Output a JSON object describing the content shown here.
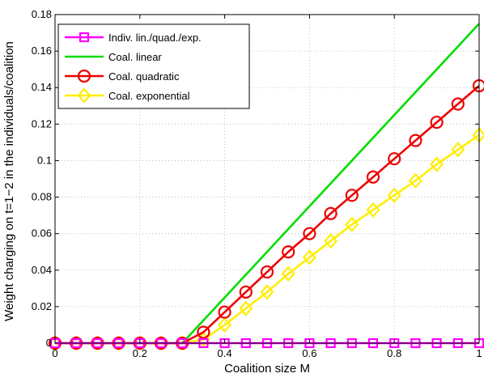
{
  "chart_data": {
    "type": "line",
    "xlabel": "Coalition size M",
    "ylabel": "Weight charging on t=1−2 in the individuals/coalition",
    "xlim": [
      0,
      1
    ],
    "ylim": [
      0,
      0.18
    ],
    "xticks": [
      0,
      0.2,
      0.4,
      0.6,
      0.8,
      1
    ],
    "xtick_labels": [
      "0",
      "0.2",
      "0.4",
      "0.6",
      "0.8",
      "1"
    ],
    "yticks": [
      0.02,
      0.04,
      0.06,
      0.08,
      0.1,
      0.12,
      0.14,
      0.16,
      0.18
    ],
    "ytick_labels": [
      "0.02",
      "0.04",
      "0.06",
      "0.08",
      "0.1",
      "0.12",
      "0.14",
      "0.16",
      "0.18"
    ],
    "y_zero_label": "0",
    "grid": true,
    "legend_position": "top-left",
    "series": [
      {
        "name": "Indiv. lin./quad./exp.",
        "color": "#ff00ff",
        "marker": "square",
        "x": [
          0,
          0.05,
          0.1,
          0.15,
          0.2,
          0.25,
          0.3,
          0.35,
          0.4,
          0.45,
          0.5,
          0.55,
          0.6,
          0.65,
          0.7,
          0.75,
          0.8,
          0.85,
          0.9,
          0.95,
          1
        ],
        "y": [
          0,
          0,
          0,
          0,
          0,
          0,
          0,
          0,
          0,
          0,
          0,
          0,
          0,
          0,
          0,
          0,
          0,
          0,
          0,
          0,
          0
        ]
      },
      {
        "name": "Coal. linear",
        "color": "#00dd00",
        "marker": "none",
        "x": [
          0,
          0.3,
          1
        ],
        "y": [
          0,
          0,
          0.175
        ]
      },
      {
        "name": "Coal. quadratic",
        "color": "#ee0000",
        "marker": "circle",
        "x": [
          0,
          0.05,
          0.1,
          0.15,
          0.2,
          0.25,
          0.3,
          0.35,
          0.4,
          0.45,
          0.5,
          0.55,
          0.6,
          0.65,
          0.7,
          0.75,
          0.8,
          0.85,
          0.9,
          0.95,
          1
        ],
        "y": [
          0,
          0,
          0,
          0,
          0,
          0,
          0,
          0.006,
          0.017,
          0.028,
          0.039,
          0.05,
          0.06,
          0.071,
          0.081,
          0.091,
          0.101,
          0.111,
          0.121,
          0.131,
          0.141
        ]
      },
      {
        "name": "Coal. exponential",
        "color": "#ffee00",
        "marker": "diamond",
        "x": [
          0,
          0.05,
          0.1,
          0.15,
          0.2,
          0.25,
          0.3,
          0.35,
          0.4,
          0.45,
          0.5,
          0.55,
          0.6,
          0.65,
          0.7,
          0.75,
          0.8,
          0.85,
          0.9,
          0.95,
          1
        ],
        "y": [
          0,
          0,
          0,
          0,
          0,
          0,
          0,
          0.002,
          0.01,
          0.019,
          0.028,
          0.038,
          0.047,
          0.056,
          0.065,
          0.073,
          0.081,
          0.089,
          0.098,
          0.106,
          0.114
        ]
      }
    ]
  }
}
